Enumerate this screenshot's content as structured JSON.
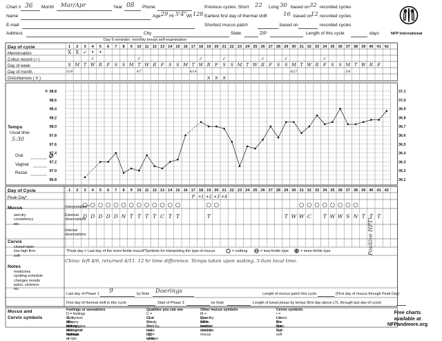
{
  "header": {
    "chart_label": "Chart #",
    "chart_no": "36",
    "month_label": "Month",
    "month_val": "Mar/Apr",
    "year_label": "Year",
    "year_val": "08",
    "phone_label": "Phone",
    "name_label": "Name",
    "age_label": "Age",
    "age_val": "29",
    "ht_label": "Ht",
    "ht_val": "5'4\"",
    "wt_label": "Wt",
    "wt_val": "128",
    "email_label": "E-mail",
    "address_label": "Address",
    "city_label": "City",
    "state_label": "State",
    "zip_label": "ZIP",
    "prev_cycles_label": "Previous cycles: Short",
    "prev_short": "22",
    "long_label": "Long",
    "prev_long": "30",
    "based_on_label": "based on",
    "based_on_val": "32",
    "recorded_cycles": "recorded cycles",
    "earliest_label": "Earliest first day of thermal shift",
    "earliest_val": "16",
    "based_on_val2": "12",
    "shortest_label": "Shortest mucus patch",
    "length_label": "Length of this cycle",
    "days_label": "days",
    "brand": "NFP International"
  },
  "row_labels": {
    "day_of_cycle": "Day of cycle",
    "menstruation": "Menstruation",
    "coitus": "Coitus record (✓)",
    "day_of_week": "Day of week",
    "day_of_month": "Day of month",
    "disturbances": "Disturbances ( X )",
    "reminder": "Day 6 reminder: monthly breast self-examination",
    "temps": "Temps",
    "usual_time": "Usual time:",
    "usual_val": "5:30",
    "oral": "Oral",
    "vaginal": "Vaginal",
    "rectal": "Rectal",
    "day_of_cycle2": "Day of Cycle",
    "peak_day": "Peak Day*",
    "mucus": "Mucus",
    "mucus_sub": "wet-dry consistency etc.",
    "interpretation": "Interpretation**",
    "external": "External observations",
    "internal": "Internal observations",
    "cervix": "Cervix",
    "cervix_sub": "closed-open low-high firm-soft",
    "notes": "Notes",
    "notes_sub": "medicines spotting schedule changes moods pains, sickness etc.",
    "peak_def": "*Peak day = Last day of the more-fertile mucus",
    "sym_interp": "**Symbols for interpreting the type of mucus",
    "nothing": "= nothing",
    "less_fertile": "= less-fertile type",
    "more_fertile": "= more-fertile type",
    "notes_text": "China: left 4/6, returned 4/11. 12 hr time difference. Temps taken upon waking, 5-6am local time.",
    "positive_hpt": "Positive HPT!",
    "last_day_phase1": "Last day of Phase 1",
    "phase1_val": "9",
    "by_rule": "by Rule",
    "rule_val": "Doerings",
    "length_mucus": "Length of mucus patch this cycle",
    "first_day_thermal": "First day of thermal shift in this cycle",
    "start_phase3": "Start of Phase 3",
    "first_day_mucus": "(First day of mucus through Peak Day)",
    "length_luteal": "Length of luteal phase by temps (first day above LTL through last day of cycle)",
    "mucus_cervix": "Mucus and Cervix symbols",
    "feelings_title": "Feelings or sensations",
    "feelings_lines": [
      "D = feelings of dryness on labia/vagina",
      "SL = slippery or lubrication feelings",
      "W = feelings of wetness on lips of vagina",
      "N = no feelings of dryness or lubrication"
    ],
    "qualities_title": "Qualities you can see",
    "qualities_lines": [
      "C = clear",
      "CL = cloudy",
      "S = stretchy, raw-egg-white",
      "T = tacky    OP = opaque"
    ],
    "other_title": "Other mucus symbols",
    "other_lines": [
      "M = less-fertile, hard to describe mucus",
      "Quantity: +  ++  +++",
      "SR = seminal residue"
    ],
    "cervix_title": "Cervix symbols",
    "cervix_lines": [
      "• = closed   O = open",
      "L = low       H = high",
      "F = firm      S = soft"
    ],
    "free_charts": "Free charts available at NFPandmore.org"
  },
  "days": [
    "1",
    "2",
    "3",
    "4",
    "5",
    "6",
    "7",
    "8",
    "9",
    "10",
    "11",
    "12",
    "13",
    "14",
    "15",
    "16",
    "17",
    "18",
    "19",
    "20",
    "21",
    "22",
    "23",
    "24",
    "25",
    "26",
    "27",
    "28",
    "29",
    "30",
    "31",
    "32",
    "33",
    "34",
    "35",
    "36",
    "37",
    "38",
    "39",
    "40",
    "41",
    "42"
  ],
  "weekdays": [
    "S",
    "M",
    "T",
    "W",
    "R",
    "F",
    "S",
    "S",
    "M",
    "T",
    "W",
    "R",
    "F",
    "S",
    "S",
    "M",
    "T",
    "W",
    "R",
    "F",
    "S",
    "S",
    "M",
    "T",
    "W",
    "R",
    "F",
    "S",
    "S",
    "M",
    "T",
    "W",
    "R",
    "F",
    "S",
    "S",
    "M",
    "T",
    "W",
    "R",
    "F",
    ""
  ],
  "month_days": [
    "3/30",
    "",
    "",
    "",
    "",
    "",
    "",
    "",
    "",
    "4/7",
    "",
    "",
    "",
    "",
    "",
    "",
    "4/14",
    "",
    "",
    "",
    "",
    "",
    "",
    "",
    "",
    "",
    "",
    "",
    "",
    "4/27",
    "",
    "",
    "",
    "",
    "",
    "",
    "5/4",
    "",
    "",
    "",
    "",
    ""
  ],
  "menstruation": [
    "X",
    "X",
    "✓",
    "•",
    "•",
    "",
    "",
    "",
    "",
    "",
    "",
    "",
    "",
    "",
    "",
    "",
    "",
    "",
    "",
    "",
    "",
    "",
    "",
    "",
    "",
    "",
    "",
    "",
    "",
    "",
    "",
    "",
    "",
    "",
    "",
    "",
    "",
    "",
    "",
    "",
    "",
    ""
  ],
  "coitus": [
    "",
    "",
    "",
    "✓",
    "",
    "",
    "",
    "",
    "",
    "✓",
    "",
    "",
    "",
    "",
    "",
    "",
    "",
    "✓",
    "",
    "",
    "✓",
    "",
    "",
    "",
    "",
    "✓",
    "",
    "",
    "✓",
    "",
    "",
    "",
    "",
    "✓",
    "",
    "",
    "",
    "",
    "",
    "",
    "",
    ""
  ],
  "disturbances": [
    "",
    "",
    "",
    "",
    "",
    "",
    "",
    "",
    "",
    "",
    "",
    "",
    "",
    "",
    "",
    "",
    "",
    "",
    "X",
    "X",
    "X",
    "",
    "",
    "",
    "",
    "",
    "",
    "",
    "",
    "",
    "",
    "",
    "",
    "",
    "",
    "",
    "",
    "",
    "",
    "",
    "",
    ""
  ],
  "interpretation": [
    "",
    "",
    "O",
    "O",
    "O",
    "O",
    "O",
    "O",
    "O",
    "O",
    "O",
    "O",
    "O",
    "O",
    "O",
    "",
    "",
    "",
    "O",
    "O",
    "",
    "",
    "",
    "",
    "",
    "",
    "",
    "",
    "",
    "",
    "O",
    "O",
    "O",
    "O",
    "O",
    "O",
    "O",
    "O",
    "",
    "",
    "",
    ""
  ],
  "external": [
    "",
    "",
    "D",
    "D",
    "D",
    "D",
    "D",
    "N",
    "T",
    "T",
    "T",
    "T",
    "C",
    "T",
    "T",
    "",
    "",
    "",
    "T",
    "",
    "",
    "",
    "",
    "",
    "",
    "",
    "",
    "",
    "T",
    "W",
    "W",
    "C",
    "",
    "T",
    "W",
    "W",
    "S",
    "N",
    "T",
    "T",
    "T",
    ""
  ],
  "peak_numbers": [
    "",
    "",
    "",
    "",
    "",
    "",
    "",
    "",
    "",
    "",
    "",
    "",
    "",
    "",
    "",
    "",
    "P",
    "+1",
    "+2",
    "+3",
    "+4",
    "",
    "",
    "",
    "",
    "",
    "",
    "",
    "",
    "",
    "",
    "",
    "",
    "",
    "",
    "",
    "",
    "",
    "",
    "",
    "",
    ""
  ],
  "temp_scale": {
    "labels_f": [
      "F. 98.8",
      "98.6",
      "98.4",
      "98.2",
      "98.0",
      "97.8",
      "97.6",
      "97.4",
      "97.2",
      "97.0",
      "96.8"
    ],
    "labels_c": [
      "37.1",
      "37.0",
      "36.9",
      "36.8",
      "36.7",
      "36.6",
      "36.5",
      "36.4",
      "36.3",
      "36.2",
      "36.1"
    ]
  },
  "chart_data": {
    "type": "line",
    "title": "",
    "xlabel": "Day of cycle",
    "ylabel": "Temps",
    "ylim": [
      96.8,
      98.8
    ],
    "x": [
      3,
      5,
      6,
      7,
      8,
      9,
      10,
      11,
      12,
      13,
      14,
      15,
      16,
      18,
      19,
      20,
      21,
      22,
      23,
      24,
      25,
      26,
      27,
      28,
      29,
      30,
      31,
      32,
      33,
      34,
      35,
      36,
      37,
      38,
      39,
      40,
      41,
      42
    ],
    "y": [
      96.85,
      97.2,
      97.2,
      97.4,
      96.95,
      97.05,
      97.0,
      97.35,
      97.1,
      97.05,
      97.2,
      97.25,
      97.8,
      98.1,
      98.0,
      98.0,
      97.95,
      97.65,
      97.1,
      97.55,
      97.5,
      97.7,
      98.0,
      97.75,
      98.1,
      98.1,
      97.85,
      98.0,
      98.25,
      98.05,
      98.1,
      98.4,
      98.05,
      98.05,
      98.1,
      98.15,
      98.15,
      98.35
    ],
    "gaps": [
      [
        3,
        5
      ],
      [
        16,
        18
      ]
    ]
  }
}
